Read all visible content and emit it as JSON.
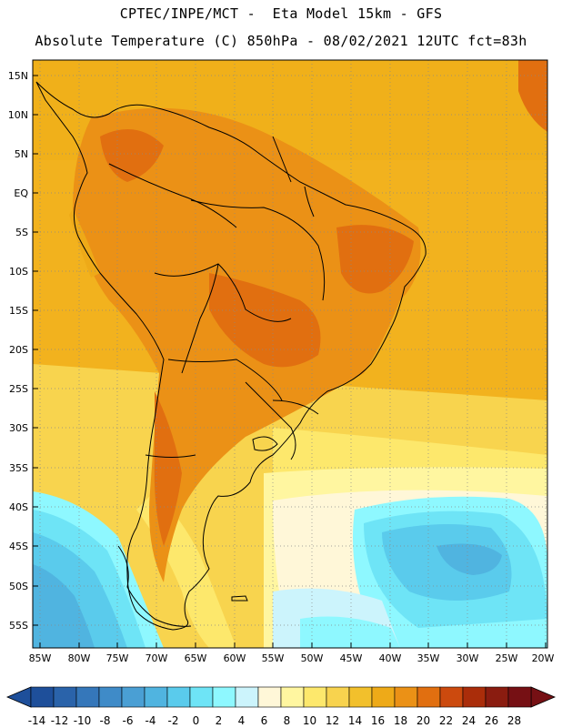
{
  "header": {
    "line1": "CPTEC/INPE/MCT -  Eta Model 15km - GFS",
    "line2": "Absolute Temperature (C) 850hPa - 08/02/2021 12UTC fct=83h"
  },
  "map": {
    "lat_labels": [
      "15N",
      "10N",
      "5N",
      "EQ",
      "5S",
      "10S",
      "15S",
      "20S",
      "25S",
      "30S",
      "35S",
      "40S",
      "45S",
      "50S",
      "55S"
    ],
    "lon_labels": [
      "85W",
      "80W",
      "75W",
      "70W",
      "65W",
      "60W",
      "55W",
      "50W",
      "45W",
      "40W",
      "35W",
      "30W",
      "25W",
      "20W"
    ]
  },
  "colorbar": {
    "labels": [
      "-14",
      "-12",
      "-10",
      "-8",
      "-6",
      "-4",
      "-2",
      "0",
      "2",
      "4",
      "6",
      "8",
      "10",
      "12",
      "14",
      "16",
      "18",
      "20",
      "22",
      "24",
      "26",
      "28"
    ],
    "colors": [
      "#1e4f9a",
      "#2a63aa",
      "#3577ba",
      "#3f8bc8",
      "#4a9fd4",
      "#50b4e0",
      "#5acbec",
      "#6ee4f6",
      "#8ef8ff",
      "#ccf4fc",
      "#fff7d8",
      "#fff6a0",
      "#fde86c",
      "#f8d34e",
      "#f2c02c",
      "#eeaa18",
      "#eb9116",
      "#e16f10",
      "#cc4a0e",
      "#aa2d0a",
      "#8a1c10",
      "#761014"
    ]
  }
}
